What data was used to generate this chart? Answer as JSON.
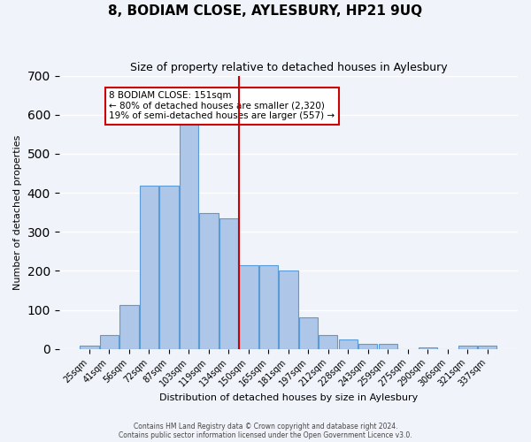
{
  "title": "8, BODIAM CLOSE, AYLESBURY, HP21 9UQ",
  "subtitle": "Size of property relative to detached houses in Aylesbury",
  "xlabel": "Distribution of detached houses by size in Aylesbury",
  "ylabel": "Number of detached properties",
  "bar_labels": [
    "25sqm",
    "41sqm",
    "56sqm",
    "72sqm",
    "87sqm",
    "103sqm",
    "119sqm",
    "134sqm",
    "150sqm",
    "165sqm",
    "181sqm",
    "197sqm",
    "212sqm",
    "228sqm",
    "243sqm",
    "259sqm",
    "275sqm",
    "290sqm",
    "306sqm",
    "321sqm",
    "337sqm"
  ],
  "bar_values": [
    8,
    35,
    113,
    418,
    418,
    578,
    347,
    335,
    215,
    215,
    202,
    82,
    35,
    25,
    13,
    13,
    0,
    5,
    0,
    8,
    8
  ],
  "bar_color": "#aec6e8",
  "bar_edge_color": "#5b9bd5",
  "vline_x": 8,
  "vline_color": "#cc0000",
  "annotation_title": "8 BODIAM CLOSE: 151sqm",
  "annotation_line1": "← 80% of detached houses are smaller (2,320)",
  "annotation_line2": "19% of semi-detached houses are larger (557) →",
  "annotation_box_edge": "#cc0000",
  "ylim": [
    0,
    700
  ],
  "yticks": [
    0,
    100,
    200,
    300,
    400,
    500,
    600,
    700
  ],
  "background_color": "#f0f4fa",
  "grid_color": "#ffffff",
  "footer1": "Contains HM Land Registry data © Crown copyright and database right 2024.",
  "footer2": "Contains public sector information licensed under the Open Government Licence v3.0."
}
